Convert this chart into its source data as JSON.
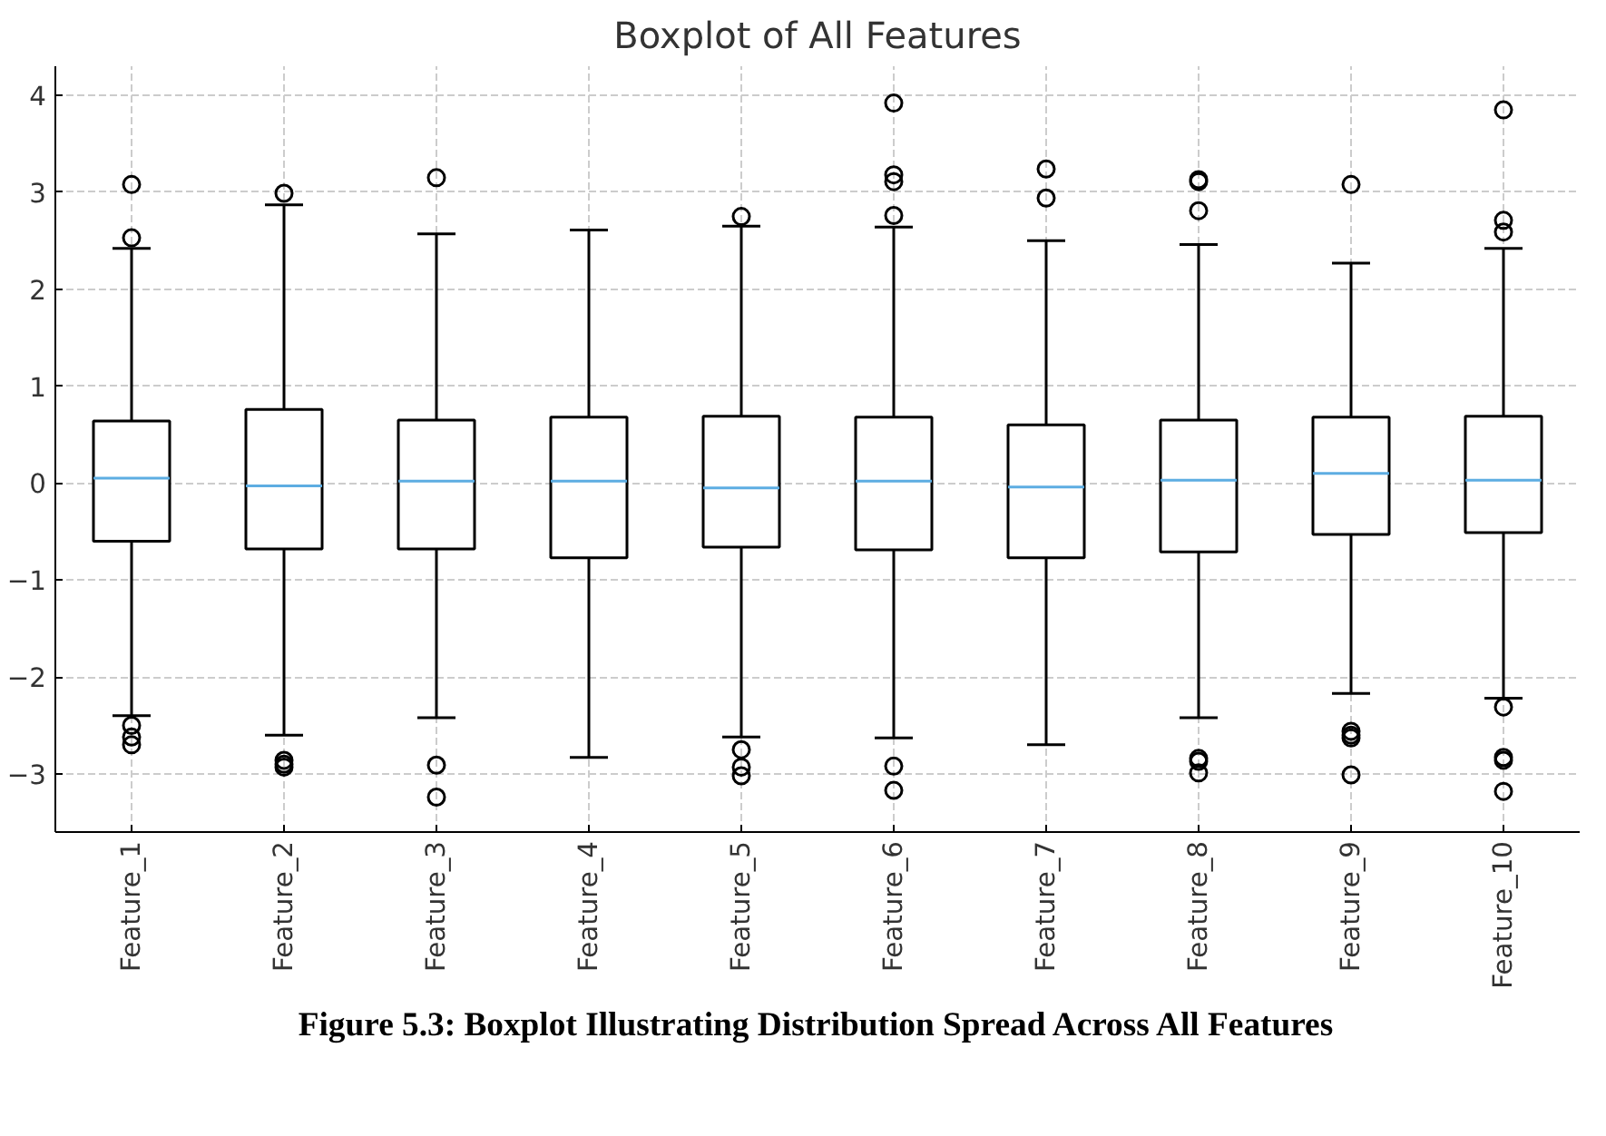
{
  "chart_data": {
    "type": "box",
    "title": "Boxplot of All Features",
    "categories": [
      "Feature_1",
      "Feature_2",
      "Feature_3",
      "Feature_4",
      "Feature_5",
      "Feature_6",
      "Feature_7",
      "Feature_8",
      "Feature_9",
      "Feature_10"
    ],
    "series": [
      {
        "color": "#000000",
        "boxes": [
          {
            "low": -2.4,
            "q1": -0.6,
            "median": 0.05,
            "q3": 0.64,
            "high": 2.42,
            "outliers": [
              3.08,
              2.53,
              -2.5,
              -2.62,
              -2.7
            ]
          },
          {
            "low": -2.6,
            "q1": -0.68,
            "median": -0.03,
            "q3": 0.76,
            "high": 2.87,
            "outliers": [
              2.99,
              -2.86,
              -2.9,
              -2.93
            ]
          },
          {
            "low": -2.42,
            "q1": -0.68,
            "median": 0.02,
            "q3": 0.65,
            "high": 2.57,
            "outliers": [
              3.15,
              -2.91,
              -3.24
            ]
          },
          {
            "low": -2.83,
            "q1": -0.77,
            "median": 0.02,
            "q3": 0.68,
            "high": 2.61
          },
          {
            "low": -2.62,
            "q1": -0.66,
            "median": -0.05,
            "q3": 0.69,
            "high": 2.65,
            "outliers": [
              2.75,
              -2.75,
              -2.93,
              -3.02
            ]
          },
          {
            "low": -2.63,
            "q1": -0.69,
            "median": 0.02,
            "q3": 0.68,
            "high": 2.64,
            "outliers": [
              3.92,
              3.18,
              3.11,
              2.76,
              -2.92,
              -3.17
            ]
          },
          {
            "low": -2.7,
            "q1": -0.77,
            "median": -0.04,
            "q3": 0.6,
            "high": 2.5,
            "outliers": [
              3.24,
              2.94
            ]
          },
          {
            "low": -2.42,
            "q1": -0.71,
            "median": 0.03,
            "q3": 0.65,
            "high": 2.46,
            "outliers": [
              3.13,
              3.11,
              2.81,
              -2.84,
              -2.87,
              -2.99
            ]
          },
          {
            "low": -2.17,
            "q1": -0.53,
            "median": 0.1,
            "q3": 0.68,
            "high": 2.27,
            "outliers": [
              3.08,
              -2.56,
              -2.6,
              -2.63,
              -3.01
            ]
          },
          {
            "low": -2.22,
            "q1": -0.51,
            "median": 0.03,
            "q3": 0.69,
            "high": 2.42,
            "outliers": [
              3.85,
              2.71,
              2.59,
              -2.31,
              -2.83,
              -2.86,
              -3.18
            ]
          }
        ]
      }
    ],
    "ylim": [
      -3.6,
      4.3
    ],
    "yticks": [
      -3,
      -2,
      -1,
      0,
      1,
      2,
      3,
      4
    ],
    "grid": true,
    "marker": "circle",
    "annotations": [
      "Figure 5.3: Boxplot Illustrating Distribution Spread Across All Features"
    ]
  }
}
